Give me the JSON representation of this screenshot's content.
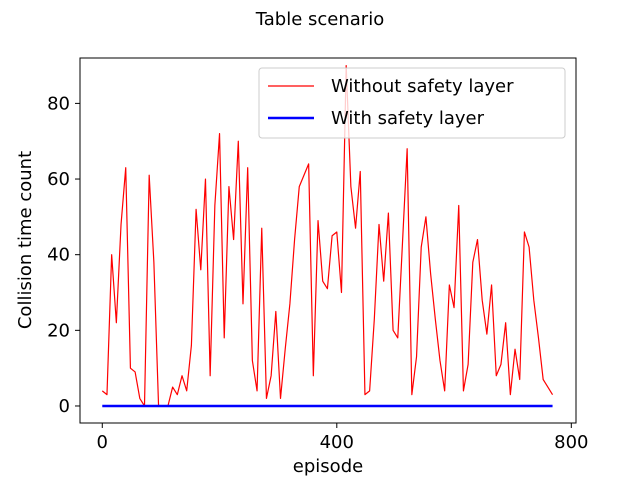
{
  "chart_data": {
    "type": "line",
    "title": "Table scenario",
    "xlabel": "episode",
    "ylabel": "Collision time count",
    "xlim": [
      -38,
      808
    ],
    "ylim": [
      -4.5,
      92
    ],
    "xticks": [
      0,
      400,
      800
    ],
    "yticks": [
      0,
      20,
      40,
      60,
      80
    ],
    "grid": false,
    "legend_position": "top-right",
    "x": [
      0,
      8,
      16,
      24,
      32,
      40,
      48,
      56,
      64,
      72,
      80,
      88,
      96,
      104,
      112,
      120,
      128,
      136,
      144,
      152,
      160,
      168,
      176,
      184,
      192,
      200,
      208,
      216,
      224,
      232,
      240,
      248,
      256,
      264,
      272,
      280,
      288,
      296,
      304,
      312,
      320,
      328,
      336,
      344,
      352,
      360,
      368,
      376,
      384,
      392,
      400,
      408,
      416,
      424,
      432,
      440,
      448,
      456,
      464,
      472,
      480,
      488,
      496,
      504,
      512,
      520,
      528,
      536,
      544,
      552,
      560,
      568,
      576,
      584,
      592,
      600,
      608,
      616,
      624,
      632,
      640,
      648,
      656,
      664,
      672,
      680,
      688,
      696,
      704,
      712,
      720,
      728,
      736,
      744,
      752,
      760,
      768
    ],
    "series": [
      {
        "name": "Without safety layer",
        "color": "#ff0000",
        "values": [
          4,
          3,
          40,
          22,
          48,
          63,
          10,
          9,
          2,
          0,
          61,
          38,
          0,
          0,
          0,
          5,
          3,
          8,
          4,
          16,
          52,
          36,
          60,
          8,
          53,
          72,
          18,
          58,
          44,
          70,
          27,
          63,
          12,
          4,
          47,
          2,
          8,
          25,
          2,
          15,
          27,
          44,
          58,
          61,
          64,
          8,
          49,
          33,
          31,
          45,
          46,
          30,
          90,
          58,
          47,
          62,
          3,
          4,
          23,
          48,
          33,
          51,
          20,
          18,
          43,
          68,
          3,
          13,
          42,
          50,
          35,
          23,
          12,
          4,
          32,
          26,
          53,
          4,
          11,
          38,
          44,
          28,
          19,
          32,
          8,
          11,
          22,
          3,
          15,
          7,
          46,
          42,
          28,
          18,
          7,
          5,
          3
        ]
      },
      {
        "name": "With safety layer",
        "color": "#0000ff",
        "values": [
          0,
          0,
          0,
          0,
          0,
          0,
          0,
          0,
          0,
          0,
          0,
          0,
          0,
          0,
          0,
          0,
          0,
          0,
          0,
          0,
          0,
          0,
          0,
          0,
          0,
          0,
          0,
          0,
          0,
          0,
          0,
          0,
          0,
          0,
          0,
          0,
          0,
          0,
          0,
          0,
          0,
          0,
          0,
          0,
          0,
          0,
          0,
          0,
          0,
          0,
          0,
          0,
          0,
          0,
          0,
          0,
          0,
          0,
          0,
          0,
          0,
          0,
          0,
          0,
          0,
          0,
          0,
          0,
          0,
          0,
          0,
          0,
          0,
          0,
          0,
          0,
          0,
          0,
          0,
          0,
          0,
          0,
          0,
          0,
          0,
          0,
          0,
          0,
          0,
          0,
          0,
          0,
          0,
          0,
          0,
          0,
          0
        ]
      }
    ]
  }
}
